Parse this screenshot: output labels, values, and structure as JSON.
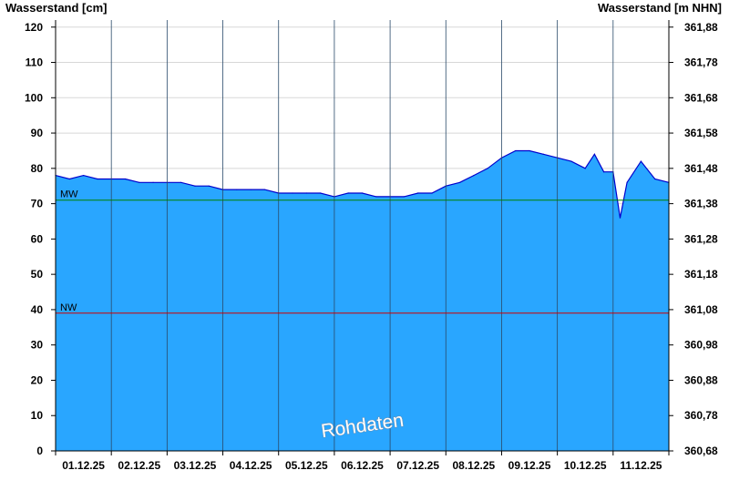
{
  "chart_data": {
    "type": "area",
    "ylabel_left": "Wasserstand [cm]",
    "ylabel_right": "Wasserstand [m NHN]",
    "yticks_left": [
      0,
      10,
      20,
      30,
      40,
      50,
      60,
      70,
      80,
      90,
      100,
      110,
      120
    ],
    "yticks_right": [
      "360,68",
      "360,78",
      "360,88",
      "360,98",
      "361,08",
      "361,18",
      "361,28",
      "361,38",
      "361,48",
      "361,58",
      "361,68",
      "361,78",
      "361,88"
    ],
    "ylim": [
      0,
      122
    ],
    "x_range_days": [
      0,
      11
    ],
    "xtick_labels": [
      "01.12.25",
      "02.12.25",
      "03.12.25",
      "04.12.25",
      "05.12.25",
      "06.12.25",
      "07.12.25",
      "08.12.25",
      "09.12.25",
      "10.12.25",
      "11.12.25"
    ],
    "reference_lines": [
      {
        "label": "MW",
        "value": 71,
        "color": "#008000"
      },
      {
        "label": "NW",
        "value": 39,
        "color": "#cc0000"
      }
    ],
    "watermark": "Rohdaten",
    "fill_color": "#29a6ff",
    "line_color": "#0000cc",
    "grid": true,
    "series": [
      {
        "x": [
          "01.12.25 00:00",
          "01.12.25 06:00",
          "01.12.25 12:00",
          "01.12.25 18:00",
          "02.12.25 00:00",
          "02.12.25 06:00",
          "02.12.25 12:00",
          "02.12.25 18:00",
          "03.12.25 00:00",
          "03.12.25 06:00",
          "03.12.25 12:00",
          "03.12.25 18:00",
          "04.12.25 00:00",
          "04.12.25 06:00",
          "04.12.25 12:00",
          "04.12.25 18:00",
          "05.12.25 00:00",
          "05.12.25 06:00",
          "05.12.25 12:00",
          "05.12.25 18:00",
          "06.12.25 00:00",
          "06.12.25 06:00",
          "06.12.25 12:00",
          "06.12.25 18:00",
          "07.12.25 00:00",
          "07.12.25 06:00",
          "07.12.25 12:00",
          "07.12.25 18:00",
          "08.12.25 00:00",
          "08.12.25 06:00",
          "08.12.25 12:00",
          "08.12.25 18:00",
          "09.12.25 00:00",
          "09.12.25 06:00",
          "09.12.25 12:00",
          "09.12.25 18:00",
          "10.12.25 00:00",
          "10.12.25 06:00",
          "10.12.25 12:00",
          "10.12.25 16:00",
          "10.12.25 20:00",
          "11.12.25 00:00",
          "11.12.25 03:00",
          "11.12.25 06:00",
          "11.12.25 12:00",
          "11.12.25 18:00",
          "12.12.25 00:00"
        ],
        "y": [
          78,
          77,
          78,
          77,
          77,
          77,
          76,
          76,
          76,
          76,
          75,
          75,
          74,
          74,
          74,
          74,
          73,
          73,
          73,
          73,
          72,
          73,
          73,
          72,
          72,
          72,
          73,
          73,
          75,
          76,
          78,
          80,
          83,
          85,
          85,
          84,
          83,
          82,
          80,
          84,
          79,
          79,
          66,
          76,
          82,
          77,
          76
        ]
      }
    ]
  }
}
